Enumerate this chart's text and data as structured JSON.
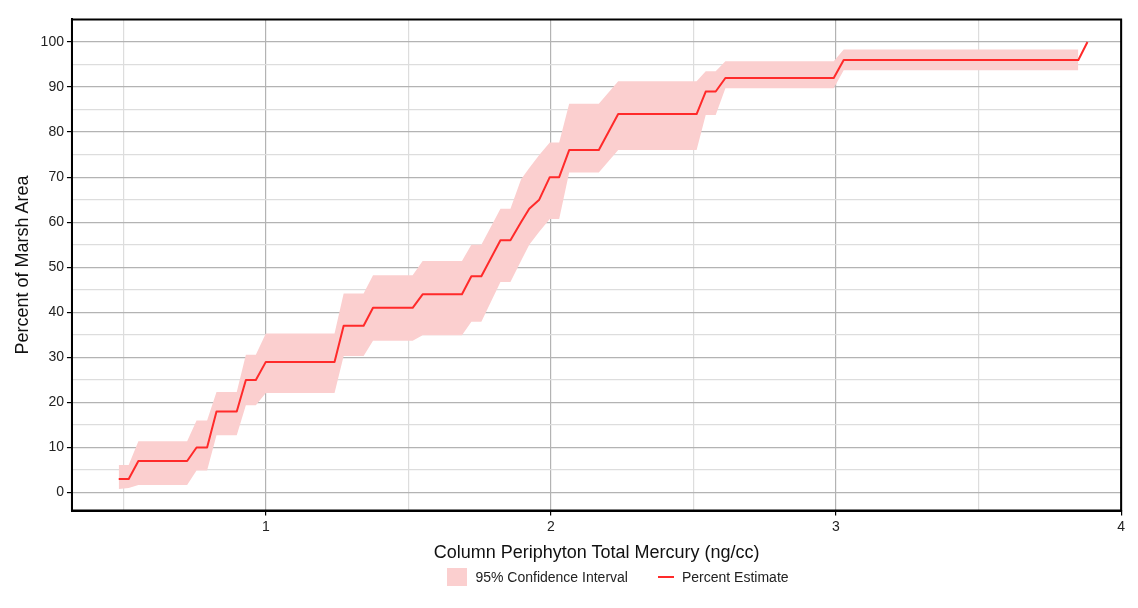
{
  "chart_data": {
    "type": "line",
    "xlabel": "Column Periphyton Total Mercury (ng/cc)",
    "ylabel": "Percent of Marsh Area",
    "xlim": [
      0.32,
      4
    ],
    "ylim": [
      -4,
      105
    ],
    "xticks": [
      {
        "value": 0.5,
        "label": null
      },
      1,
      {
        "value": 1.5,
        "label": null
      },
      2,
      {
        "value": 2.5,
        "label": null
      },
      3,
      {
        "value": 3.5,
        "label": null
      },
      4
    ],
    "yticks": [
      0,
      {
        "value": 5,
        "label": null
      },
      10,
      {
        "value": 15,
        "label": null
      },
      20,
      {
        "value": 25,
        "label": null
      },
      30,
      {
        "value": 35,
        "label": null
      },
      40,
      {
        "value": 45,
        "label": null
      },
      50,
      {
        "value": 55,
        "label": null
      },
      60,
      {
        "value": 65,
        "label": null
      },
      70,
      {
        "value": 75,
        "label": null
      },
      80,
      {
        "value": 85,
        "label": null
      },
      90,
      {
        "value": 95,
        "label": null
      },
      100
    ],
    "grid": true,
    "legend": "bottom",
    "marker": "none",
    "line_style": "solid",
    "annotations": [
      "95% Confidence Interval"
    ],
    "x": [
      0.484,
      0.519,
      0.553,
      0.724,
      0.757,
      0.794,
      0.827,
      0.898,
      0.93,
      0.965,
      1.0,
      1.241,
      1.273,
      1.343,
      1.376,
      1.515,
      1.55,
      1.688,
      1.721,
      1.756,
      1.823,
      1.858,
      1.895,
      1.924,
      1.959,
      1.996,
      2.029,
      2.064,
      2.168,
      2.236,
      2.511,
      2.543,
      2.578,
      2.612,
      2.992,
      3.027,
      3.85,
      3.882
    ],
    "series": [
      {
        "name": "Percent Estimate",
        "color": "#ff2a2a",
        "values": [
          3,
          3,
          7,
          7,
          10,
          10,
          18,
          18,
          25,
          25,
          29,
          29,
          37,
          37,
          41,
          41,
          44,
          44,
          48,
          48,
          56,
          56,
          60,
          63,
          65,
          70,
          70,
          76,
          76,
          84,
          84,
          89,
          89,
          92,
          92,
          96,
          96,
          100
        ],
        "lower": [
          0.8,
          1.0,
          1.7,
          1.7,
          4.9,
          4.9,
          12.7,
          12.7,
          19.4,
          19.4,
          22.1,
          22.1,
          30.3,
          30.3,
          33.7,
          33.7,
          34.9,
          34.9,
          37.9,
          37.9,
          46.7,
          46.7,
          51.4,
          55,
          57.9,
          60.7,
          60.7,
          71,
          71,
          76,
          76,
          83.8,
          83.8,
          89.7,
          89.7,
          93.7,
          93.7,
          null
        ],
        "upper": [
          6.1,
          6.1,
          11.4,
          11.4,
          16,
          16,
          22.3,
          22.3,
          30.6,
          30.6,
          35.3,
          35.3,
          44.2,
          44.2,
          48.2,
          48.2,
          51.4,
          51.4,
          55,
          55,
          63,
          63,
          69.5,
          72,
          74.9,
          77.7,
          77.7,
          86.3,
          86.3,
          91.3,
          91.3,
          93.5,
          93.5,
          95.7,
          95.7,
          98.3,
          98.3,
          null
        ]
      }
    ]
  }
}
